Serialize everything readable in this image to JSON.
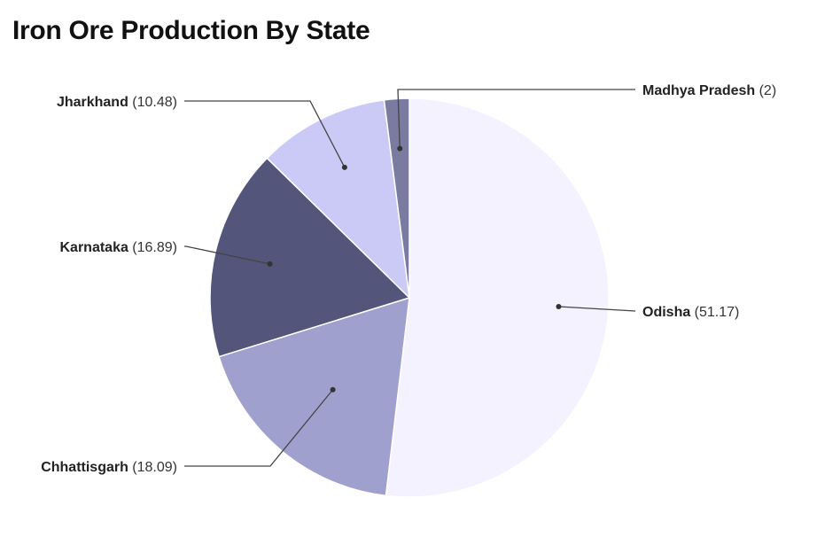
{
  "title": "Iron Ore Production By State",
  "chart_data": {
    "type": "pie",
    "title": "Iron Ore Production By State",
    "slices": [
      {
        "label": "Odisha",
        "value": 51.17,
        "value_text": "(51.17)",
        "color": "#f4f2fe"
      },
      {
        "label": "Chhattisgarh",
        "value": 18.09,
        "value_text": "(18.09)",
        "color": "#a0a0ce"
      },
      {
        "label": "Karnataka",
        "value": 16.89,
        "value_text": "(16.89)",
        "color": "#53557b"
      },
      {
        "label": "Jharkhand",
        "value": 10.48,
        "value_text": "(10.48)",
        "color": "#cbcaf7"
      },
      {
        "label": "Madhya Pradesh",
        "value": 2,
        "value_text": "(2)",
        "color": "#7b7ba1"
      }
    ],
    "start_angle": "top",
    "direction": "clockwise",
    "labels": "outside with leader lines"
  }
}
